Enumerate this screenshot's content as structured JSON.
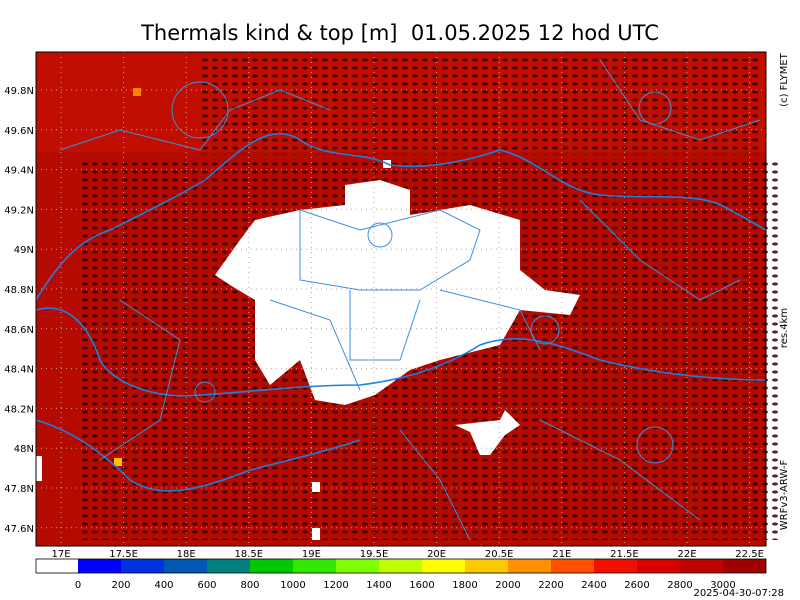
{
  "title": "Thermals kind & top [m]  01.05.2025 12 hod UTC",
  "lat_labels": [
    "49.8N",
    "49.6N",
    "49.4N",
    "49.2N",
    "49N",
    "48.8N",
    "48.6N",
    "48.4N",
    "48.2N",
    "48N",
    "47.8N",
    "47.6N"
  ],
  "lon_labels": [
    "17E",
    "17.5E",
    "18E",
    "18.5E",
    "19E",
    "19.5E",
    "20E",
    "20.5E",
    "21E",
    "21.5E",
    "22E",
    "22.5E"
  ],
  "colorbar": {
    "colors": [
      "#ffffff",
      "#0000ff",
      "#0030e0",
      "#0058b0",
      "#008080",
      "#00c800",
      "#30e800",
      "#80ff00",
      "#c0ff00",
      "#ffff00",
      "#ffc800",
      "#ff9000",
      "#ff5000",
      "#f01000",
      "#d80000",
      "#c00000",
      "#a00000"
    ],
    "labels": [
      0,
      200,
      400,
      600,
      800,
      1000,
      1200,
      1400,
      1600,
      1800,
      2000,
      2200,
      2400,
      2600,
      2800,
      3000
    ]
  },
  "copyright": "(c) FLYMET",
  "resolution": "res.4km",
  "model": "WRFv3-ARW-F",
  "timestamp": "2025-04-30-07:28"
}
